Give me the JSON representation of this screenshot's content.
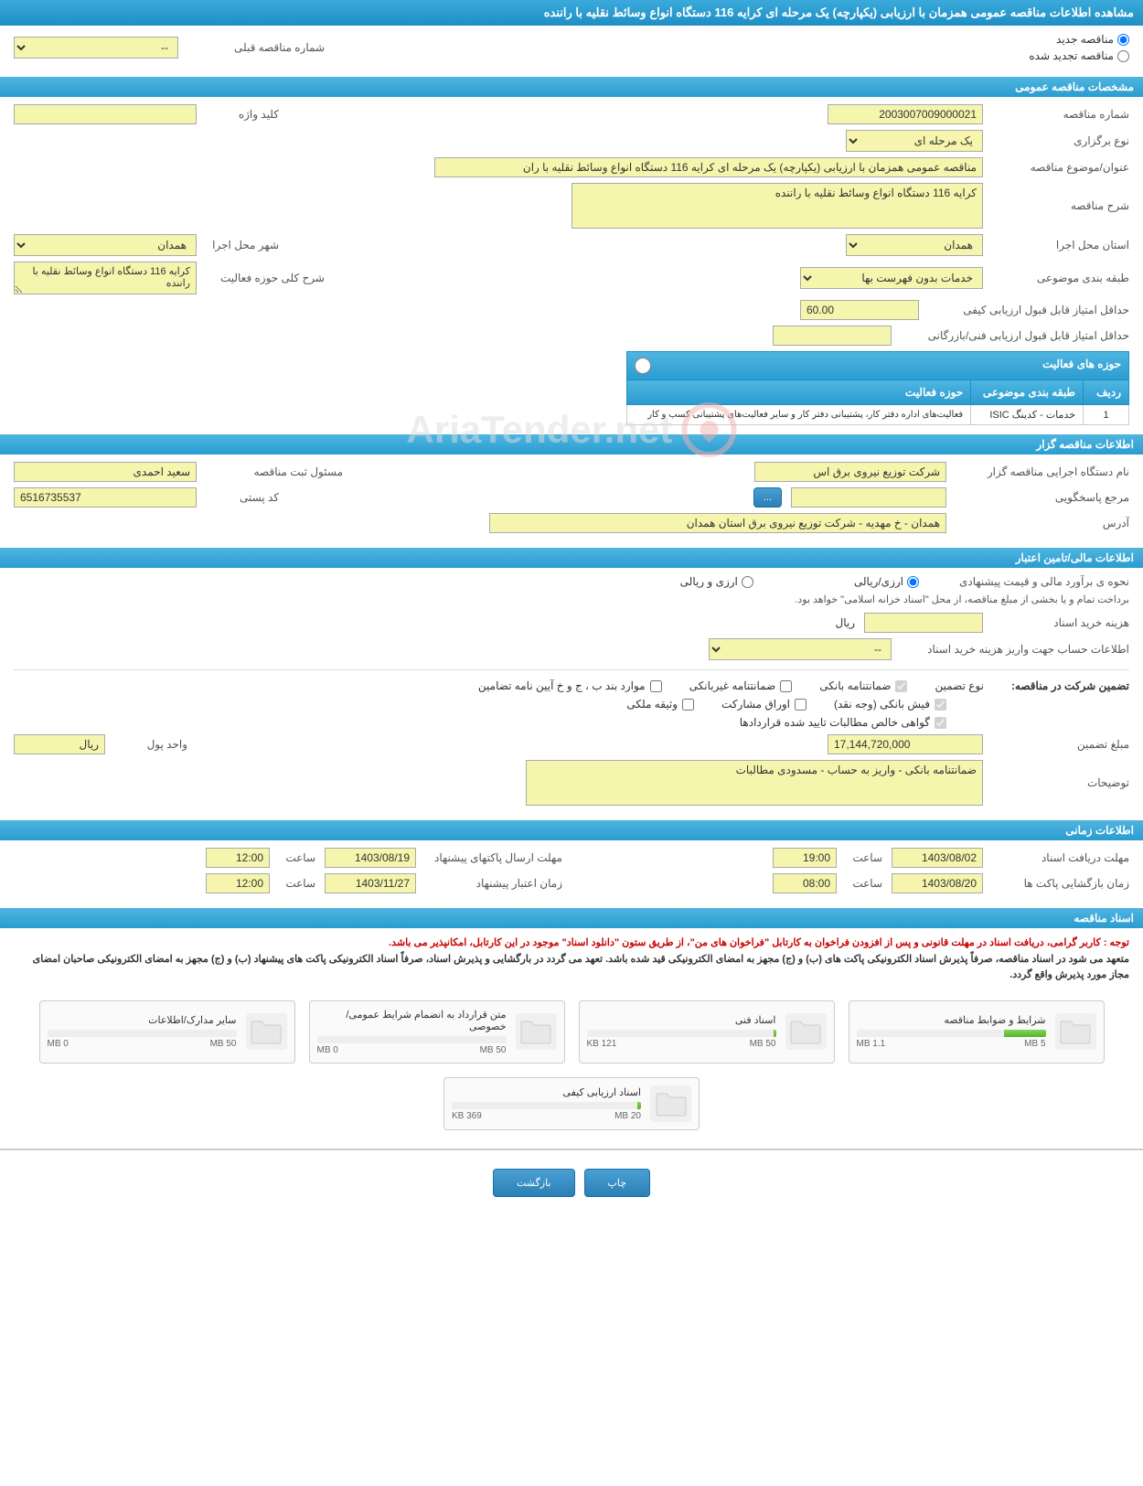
{
  "header": {
    "title": "مشاهده اطلاعات مناقصه عمومی همزمان با ارزیابی (یکپارچه) یک مرحله ای کرایه 116 دستگاه انواع وسائط نقلیه با راننده"
  },
  "top_radio": {
    "new_tender": "مناقصه جدید",
    "renewed_tender": "مناقصه تجدید شده",
    "prev_number_label": "شماره مناقصه قبلی",
    "prev_number_value": "--"
  },
  "sections": {
    "general": "مشخصات مناقصه عمومی",
    "client": "اطلاعات مناقصه گزار",
    "financial": "اطلاعات مالی/تامین اعتبار",
    "time": "اطلاعات زمانی",
    "docs": "اسناد مناقصه"
  },
  "general": {
    "tender_number_label": "شماره مناقصه",
    "tender_number": "2003007009000021",
    "keyword_label": "کلید واژه",
    "keyword": "",
    "type_label": "نوع برگزاری",
    "type": "یک مرحله ای",
    "title_label": "عنوان/موضوع مناقصه",
    "title_value": "مناقصه عمومی همزمان با ارزیابی (یکپارچه) یک مرحله ای کرایه 116 دستگاه انواع وسائط نقلیه با ران",
    "description_label": "شرح مناقصه",
    "description_value": "کرایه 116 دستگاه انواع وسائط نقلیه با راننده",
    "province_label": "استان محل اجرا",
    "province": "همدان",
    "city_label": "شهر محل اجرا",
    "city": "همدان",
    "subject_class_label": "طبقه بندی موضوعی",
    "subject_class": "خدمات بدون فهرست بها",
    "activity_general_label": "شرح کلی حوزه فعالیت",
    "activity_general": "کرایه 116 دستگاه انواع وسائط نقلیه با راننده",
    "min_quality_label": "حداقل امتیاز قابل قبول ارزیابی کیفی",
    "min_quality": "60.00",
    "min_tech_label": "حداقل امتیاز قابل قبول ارزیابی فنی/بازرگانی",
    "min_tech": "",
    "activities_header": "حوزه های فعالیت",
    "activities": {
      "cols": {
        "row": "ردیف",
        "class": "طبقه بندی موضوعی",
        "area": "حوزه فعالیت"
      },
      "rows": [
        {
          "row": "1",
          "class": "خدمات - کدینگ ISIC",
          "area": "فعالیت‌های اداره دفتر کار، پشتیبانی دفتر کار و سایر فعالیت‌های پشتیبانی کسب و کار"
        }
      ]
    }
  },
  "client": {
    "agency_label": "نام دستگاه اجرایی مناقصه گزار",
    "agency": "شرکت توزیع نیروی برق اس",
    "responsible_label": "مسئول ثبت مناقصه",
    "responsible": "سعید احمدی",
    "contact_label": "مرجع پاسخگویی",
    "contact": "",
    "postal_label": "کد پستی",
    "postal": "6516735537",
    "address_label": "آدرس",
    "address": "همدان - خ مهدیه - شرکت توزیع نیروی برق استان همدان",
    "btn_dots": "..."
  },
  "financial": {
    "estimate_label": "نحوه ی برآورد مالی و قیمت پیشنهادی",
    "radio_rial": "ارزی/ریالی",
    "radio_currency": "ارزی و ریالی",
    "payment_note": "برداخت تمام و یا بخشی از مبلغ مناقصه، از محل \"اسناد خزانه اسلامی\" خواهد بود.",
    "doc_cost_label": "هزینه خرید اسناد",
    "doc_cost": "",
    "doc_cost_unit": "ریال",
    "account_label": "اطلاعات حساب جهت واریز هزینه خرید اسناد",
    "account": "--",
    "guarantee_label": "تضمین شرکت در مناقصه:",
    "guarantee_type_label": "نوع تضمین",
    "checks": {
      "bank_guarantee": "ضمانتنامه بانکی",
      "nonbank_guarantee": "ضمانتنامه غیربانکی",
      "guarantee_items": "موارد بند ب ، ج و خ آیین نامه تضامین",
      "cash": "فیش بانکی (وجه نقد)",
      "securities": "اوراق مشارکت",
      "property": "وثیقه ملکی",
      "net_demands": "گواهی خالص مطالبات تایید شده قراردادها"
    },
    "amount_label": "مبلغ تضمین",
    "amount": "17,144,720,000",
    "currency_label": "واحد پول",
    "currency": "ریال",
    "notes_label": "توضیحات",
    "notes": "ضمانتنامه بانکی - واریز به حساب - مسدودی مطالبات"
  },
  "time": {
    "deadline_receive_label": "مهلت دریافت اسناد",
    "deadline_receive_date": "1403/08/02",
    "time_label": "ساعت",
    "deadline_receive_time": "19:00",
    "deadline_send_label": "مهلت ارسال پاکتهای پیشنهاد",
    "deadline_send_date": "1403/08/19",
    "deadline_send_time": "12:00",
    "opening_label": "زمان بازگشایی پاکت ها",
    "opening_date": "1403/08/20",
    "opening_time": "08:00",
    "validity_label": "زمان اعتبار پیشنهاد",
    "validity_date": "1403/11/27",
    "validity_time": "12:00"
  },
  "docs": {
    "notice1_red": "توجه : کاربر گرامی، دریافت اسناد در مهلت قانونی و پس از افزودن فراخوان به کارتابل \"فراخوان های من\"، از طریق ستون \"دانلود اسناد\" موجود در این کارتابل، امکانپذیر می باشد.",
    "notice2": "متعهد می شود در اسناد مناقصه، صرفاً پذیرش اسناد الکترونیکی پاکت های (ب) و (ج) مجهز به امضای الکترونیکی قید شده باشد. تعهد می گردد در بارگشایی و پذیرش اسناد، صرفاً اسناد الکترونیکی پاکت های پیشنهاد (ب) و (ج) مجهز به امضای الکترونیکی صاحبان امضای مجاز مورد پذیرش واقع گردد.",
    "items": [
      {
        "title": "شرایط و ضوابط مناقصه",
        "used": "1.1 MB",
        "max": "5 MB",
        "fill": 22
      },
      {
        "title": "اسناد فنی",
        "used": "121 KB",
        "max": "50 MB",
        "fill": 1
      },
      {
        "title": "متن قرارداد به انضمام شرایط عمومی/خصوصی",
        "used": "0 MB",
        "max": "50 MB",
        "fill": 0
      },
      {
        "title": "سایر مدارک/اطلاعات",
        "used": "0 MB",
        "max": "50 MB",
        "fill": 0
      },
      {
        "title": "اسناد ارزیابی کیفی",
        "used": "369 KB",
        "max": "20 MB",
        "fill": 2
      }
    ]
  },
  "buttons": {
    "print": "چاپ",
    "back": "بازگشت"
  },
  "watermark": "AriaTender.net",
  "colors": {
    "header_blue": "#3ba9db",
    "yellow_bg": "#f5f5ad",
    "green": "#5cb030",
    "red": "#cc0000"
  }
}
